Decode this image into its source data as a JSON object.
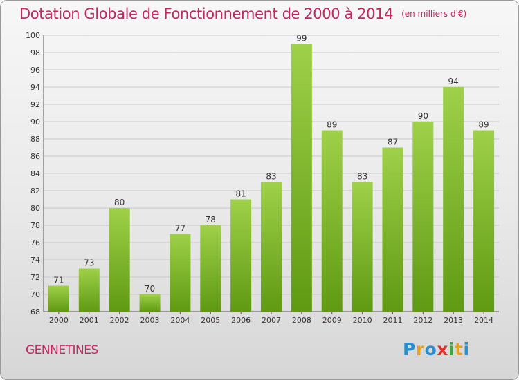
{
  "header": {
    "title": "Dotation Globale de Fonctionnement de 2000 à 2014",
    "unit": "(en milliers d'€)"
  },
  "footer": {
    "commune": "GENNETINES",
    "logo": {
      "letters": [
        "P",
        "r",
        "o",
        "x",
        "i",
        "t",
        "i"
      ],
      "colors": [
        "#2a8fd0",
        "#e8a020",
        "#2a8fd0",
        "#e03030",
        "#3aa83a",
        "#e8a020",
        "#2a8fd0"
      ]
    }
  },
  "chart_data": {
    "type": "bar",
    "title": "Dotation Globale de Fonctionnement de 2000 à 2014",
    "xlabel": "",
    "ylabel": "",
    "categories": [
      "2000",
      "2001",
      "2002",
      "2003",
      "2004",
      "2005",
      "2006",
      "2007",
      "2008",
      "2009",
      "2010",
      "2011",
      "2012",
      "2013",
      "2014"
    ],
    "values": [
      71,
      73,
      80,
      70,
      77,
      78,
      81,
      83,
      99,
      89,
      83,
      87,
      90,
      94,
      89
    ],
    "ylim": [
      68,
      100
    ],
    "yticks": [
      68,
      70,
      72,
      74,
      76,
      78,
      80,
      82,
      84,
      86,
      88,
      90,
      92,
      94,
      96,
      98,
      100
    ],
    "grid": true,
    "bar_color_top": "#9fd04a",
    "bar_color_bottom": "#5f9a12",
    "grid_color": "#c8c8c8"
  }
}
